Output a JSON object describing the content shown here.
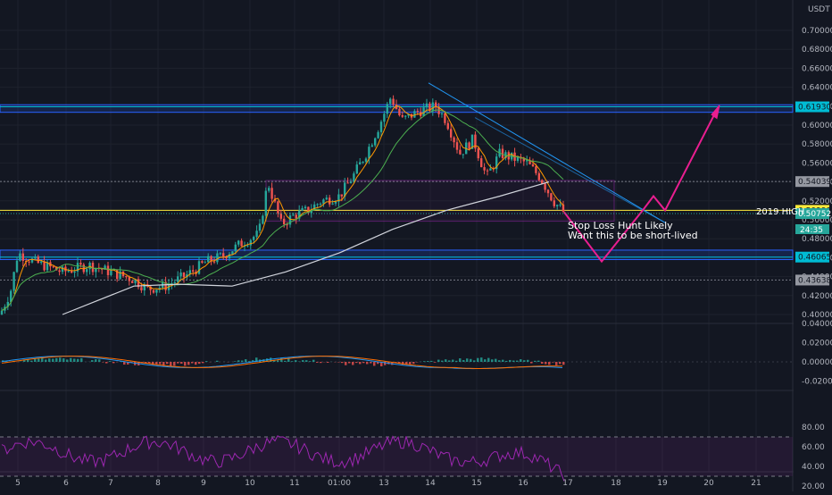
{
  "currency": "USDT",
  "annotation_lines": [
    "Stop Loss Hunt Likely",
    "Want this to be short-lived"
  ],
  "hline_label": "2019 HIGH",
  "countdown": "24:35",
  "x_axis": {
    "ticks": [
      "5",
      "6",
      "7",
      "8",
      "9",
      "10",
      "11",
      "01:00",
      "13",
      "14",
      "15",
      "16",
      "17",
      "18",
      "19",
      "20",
      "21"
    ]
  },
  "price_axis": {
    "ticks": [
      "0.70000",
      "0.68000",
      "0.66000",
      "0.64000",
      "0.62000",
      "0.60000",
      "0.58000",
      "0.56000",
      "0.54000",
      "0.52000",
      "0.50000",
      "0.48000",
      "0.46000",
      "0.44000",
      "0.42000",
      "0.40000"
    ],
    "level_badges": [
      {
        "label": "0.61930",
        "value": 0.6193,
        "color": "#00bcd4"
      },
      {
        "label": "0.54039",
        "value": 0.54039,
        "color": "#9598a1"
      },
      {
        "label": "0.50999",
        "value": 0.50999,
        "color": "#ffeb3b"
      },
      {
        "label": "0.46065",
        "value": 0.46065,
        "color": "#00bcd4"
      },
      {
        "label": "0.43638",
        "value": 0.43638,
        "color": "#9598a1"
      }
    ],
    "last_price": {
      "label": "0.50752",
      "value": 0.50752,
      "color": "#26a69a"
    }
  },
  "macd_axis": {
    "ticks": [
      "0.04000",
      "0.02000",
      "0.00000",
      "-0.02000"
    ]
  },
  "rsi_axis": {
    "ticks": [
      "80.00",
      "60.00",
      "40.00",
      "20.00"
    ]
  },
  "colors": {
    "background": "#131722",
    "up": "#26a69a",
    "down": "#ef5350",
    "ma_fast": "#ff9800",
    "ma_mid": "#4caf50",
    "ma_slow": "#d1d4dc",
    "projection": "#e91e90",
    "trendline": "#2196f3",
    "rsi": "#9c27b0",
    "band": "#2962ff"
  },
  "chart_data": {
    "type": "candlestick",
    "y_scale": "linear",
    "ylim": [
      0.395,
      0.7125
    ],
    "price_range_path": [
      [
        0,
        0.4
      ],
      [
        12,
        0.425
      ],
      [
        20,
        0.465
      ],
      [
        40,
        0.455
      ],
      [
        70,
        0.445
      ],
      [
        100,
        0.452
      ],
      [
        130,
        0.443
      ],
      [
        150,
        0.437
      ],
      [
        165,
        0.427
      ],
      [
        185,
        0.43
      ],
      [
        210,
        0.442
      ],
      [
        230,
        0.455
      ],
      [
        250,
        0.462
      ],
      [
        270,
        0.475
      ],
      [
        290,
        0.485
      ],
      [
        300,
        0.54
      ],
      [
        315,
        0.495
      ],
      [
        330,
        0.505
      ],
      [
        345,
        0.51
      ],
      [
        360,
        0.52
      ],
      [
        380,
        0.525
      ],
      [
        395,
        0.545
      ],
      [
        410,
        0.57
      ],
      [
        425,
        0.6
      ],
      [
        438,
        0.63
      ],
      [
        450,
        0.605
      ],
      [
        470,
        0.615
      ],
      [
        488,
        0.62
      ],
      [
        500,
        0.605
      ],
      [
        515,
        0.57
      ],
      [
        530,
        0.585
      ],
      [
        545,
        0.545
      ],
      [
        560,
        0.57
      ],
      [
        575,
        0.565
      ],
      [
        590,
        0.56
      ],
      [
        605,
        0.545
      ],
      [
        620,
        0.52
      ],
      [
        632,
        0.5075
      ]
    ],
    "horizontal_levels": [
      0.6193,
      0.54039,
      0.50999,
      0.46065,
      0.43638
    ],
    "zones": [
      {
        "top": 0.6215,
        "bottom": 0.6135,
        "color": "#2962ff"
      },
      {
        "top": 0.468,
        "bottom": 0.458,
        "color": "#2962ff"
      }
    ],
    "rsi": {
      "ylim": [
        20,
        80
      ],
      "bands": [
        70,
        30
      ]
    },
    "macd": {
      "ylim": [
        -0.03,
        0.04
      ]
    }
  }
}
